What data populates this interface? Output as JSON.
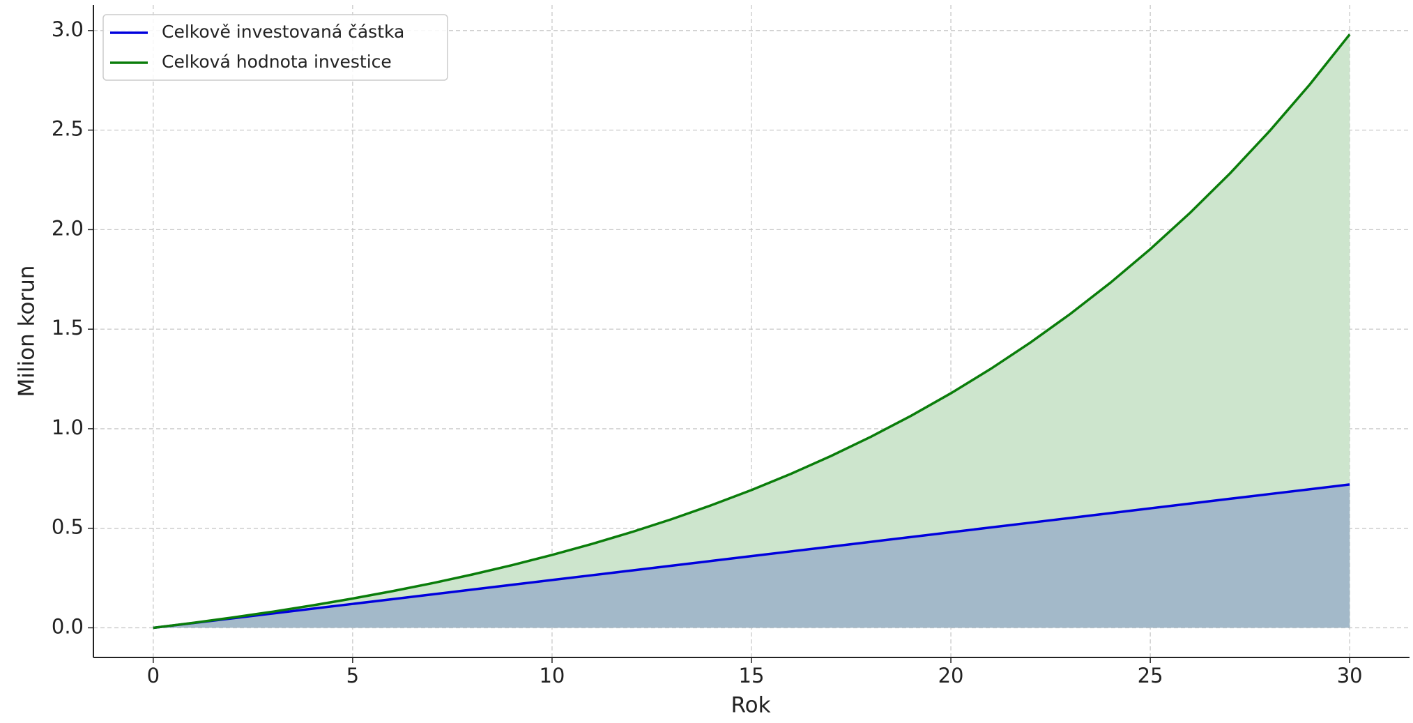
{
  "chart_data": {
    "type": "line",
    "x_label": "Rok",
    "y_label": "Milion korun",
    "x": [
      0,
      1,
      2,
      3,
      4,
      5,
      6,
      7,
      8,
      9,
      10,
      11,
      12,
      13,
      14,
      15,
      16,
      17,
      18,
      19,
      20,
      21,
      22,
      23,
      24,
      25,
      26,
      27,
      28,
      29,
      30
    ],
    "series": [
      {
        "name": "Celkově investovaná částka",
        "color": "#0000dd",
        "fill_color": "#a3b9c9",
        "values": [
          0,
          0.024,
          0.048,
          0.072,
          0.096,
          0.12,
          0.144,
          0.168,
          0.192,
          0.216,
          0.24,
          0.264,
          0.288,
          0.312,
          0.336,
          0.36,
          0.384,
          0.408,
          0.432,
          0.456,
          0.48,
          0.504,
          0.528,
          0.552,
          0.576,
          0.6,
          0.624,
          0.648,
          0.672,
          0.696,
          0.72
        ]
      },
      {
        "name": "Celková hodnota investice",
        "color": "#0a7d0a",
        "fill_color": "#cde5cd",
        "values": [
          0,
          0.0249,
          0.0519,
          0.0811,
          0.1127,
          0.147,
          0.1841,
          0.2242,
          0.2677,
          0.3149,
          0.3659,
          0.4212,
          0.481,
          0.5458,
          0.6161,
          0.6921,
          0.7744,
          0.8636,
          0.9602,
          1.0648,
          1.1781,
          1.3007,
          1.4336,
          1.5775,
          1.7333,
          1.9021,
          2.0849,
          2.2828,
          2.4972,
          2.7293,
          2.9808
        ]
      }
    ],
    "xlim": [
      -1.5,
      31.5
    ],
    "xticks": [
      0,
      5,
      10,
      15,
      20,
      25,
      30
    ],
    "ylim": [
      -0.149,
      3.129
    ],
    "yticks": [
      {
        "value": 0,
        "label": "0.0"
      },
      {
        "value": 0.5,
        "label": "0.5"
      },
      {
        "value": 1,
        "label": "1.0"
      },
      {
        "value": 1.5,
        "label": "1.5"
      },
      {
        "value": 2,
        "label": "2.0"
      },
      {
        "value": 2.5,
        "label": "2.5"
      },
      {
        "value": 3,
        "label": "3.0"
      }
    ],
    "grid": true,
    "legend": "upper-left"
  }
}
